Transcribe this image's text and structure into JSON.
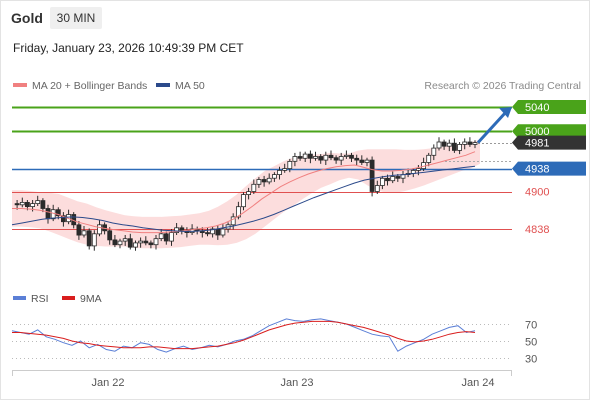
{
  "header": {
    "instrument": "Gold",
    "timeframe": "30 MIN",
    "datetime": "Friday, January 23, 2026 10:49:39 PM CET"
  },
  "legend": {
    "ma20_label": "MA 20 + Bollinger Bands",
    "ma50_label": "MA 50",
    "ma20_color": "#f08080",
    "ma50_color": "#2b4a8b"
  },
  "credit": "Research © 2026 Trading Central",
  "indicator_legend": {
    "rsi_label": "RSI",
    "ma9_label": "9MA",
    "rsi_color": "#5b7fd6",
    "ma9_color": "#d91e1e"
  },
  "colors": {
    "resistance": "#4aa31a",
    "pivot": "#2d6bb8",
    "support": "#e05050",
    "last_price": "#333333",
    "candle": "#2b2b2b",
    "band_fill": "#fbd7d7"
  },
  "chart_data": [
    {
      "type": "candlestick",
      "x_ticks": [
        "Jan 22",
        "Jan 23",
        "Jan 24"
      ],
      "ylim": [
        4780,
        5060
      ],
      "levels": [
        {
          "value": 5040,
          "label": "5040",
          "kind": "resistance"
        },
        {
          "value": 5000,
          "label": "5000",
          "kind": "resistance"
        },
        {
          "value": 4981,
          "label": "4981",
          "kind": "last"
        },
        {
          "value": 4938,
          "label": "4938",
          "kind": "pivot"
        },
        {
          "value": 4900,
          "label": "4900",
          "kind": "support"
        },
        {
          "value": 4838,
          "label": "4838",
          "kind": "support"
        }
      ],
      "close_path": [
        4880,
        4878,
        4882,
        4875,
        4880,
        4885,
        4872,
        4855,
        4870,
        4860,
        4850,
        4862,
        4845,
        4828,
        4835,
        4810,
        4830,
        4845,
        4835,
        4820,
        4812,
        4818,
        4822,
        4808,
        4815,
        4818,
        4815,
        4812,
        4822,
        4830,
        4818,
        4832,
        4840,
        4835,
        4832,
        4838,
        4835,
        4832,
        4830,
        4838,
        4828,
        4838,
        4845,
        4858,
        4875,
        4895,
        4900,
        4912,
        4920,
        4916,
        4922,
        4928,
        4935,
        4938,
        4950,
        4958,
        4955,
        4962,
        4955,
        4958,
        4952,
        4960,
        4956,
        4952,
        4958,
        4960,
        4955,
        4952,
        4948,
        4952,
        4900,
        4910,
        4922,
        4918,
        4925,
        4922,
        4928,
        4930,
        4935,
        4938,
        4948,
        4960,
        4972,
        4982,
        4975,
        4980,
        4968,
        4978,
        4982,
        4978,
        4981
      ],
      "ma20_path": [
        4872,
        4872,
        4871,
        4869,
        4866,
        4862,
        4856,
        4850,
        4846,
        4842,
        4839,
        4837,
        4835,
        4833,
        4832,
        4832,
        4832,
        4833,
        4834,
        4836,
        4838,
        4840,
        4843,
        4848,
        4855,
        4865,
        4876,
        4888,
        4898,
        4908,
        4916,
        4923,
        4929,
        4934,
        4938,
        4941,
        4943,
        4944,
        4940,
        4936,
        4934,
        4934,
        4935,
        4937,
        4940,
        4944,
        4948,
        4952,
        4956,
        4960,
        4966
      ],
      "ma50_path": [
        4845,
        4848,
        4851,
        4854,
        4856,
        4857,
        4858,
        4857,
        4855,
        4852,
        4848,
        4845,
        4843,
        4840,
        4838,
        4836,
        4835,
        4834,
        4834,
        4835,
        4837,
        4840,
        4843,
        4847,
        4851,
        4856,
        4862,
        4869,
        4876,
        4883,
        4890,
        4896,
        4902,
        4908,
        4914,
        4919,
        4922,
        4925,
        4927,
        4928,
        4930,
        4932,
        4934,
        4936,
        4938,
        4940,
        4942
      ],
      "projection": {
        "from": 4981,
        "to": 5040
      }
    },
    {
      "type": "line",
      "name": "RSI",
      "ylim": [
        20,
        80
      ],
      "y_ticks": [
        70,
        50,
        30
      ],
      "series": [
        {
          "name": "RSI",
          "values": [
            62,
            60,
            58,
            63,
            55,
            52,
            48,
            45,
            50,
            42,
            46,
            40,
            38,
            44,
            42,
            48,
            46,
            40,
            37,
            41,
            44,
            40,
            42,
            45,
            43,
            46,
            50,
            52,
            56,
            62,
            68,
            72,
            76,
            74,
            73,
            75,
            76,
            74,
            72,
            70,
            66,
            62,
            58,
            56,
            55,
            38,
            44,
            48,
            52,
            58,
            62,
            66,
            68,
            60,
            62
          ]
        },
        {
          "name": "9MA",
          "values": [
            60,
            60,
            59,
            58,
            57,
            55,
            53,
            50,
            48,
            47,
            45,
            44,
            43,
            42,
            42,
            42,
            43,
            43,
            42,
            41,
            41,
            41,
            42,
            43,
            44,
            46,
            48,
            51,
            55,
            59,
            63,
            66,
            69,
            71,
            72,
            73,
            73,
            73,
            72,
            70,
            68,
            66,
            63,
            60,
            57,
            53,
            50,
            49,
            50,
            52,
            55,
            58,
            60,
            61,
            60
          ]
        }
      ]
    }
  ]
}
